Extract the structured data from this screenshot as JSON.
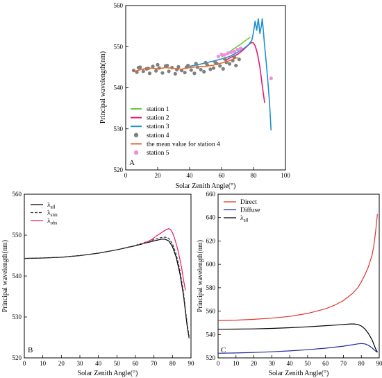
{
  "chart_data": [
    {
      "panel": "A",
      "type": "line",
      "xlabel": "Solar Zenith Angle(°)",
      "ylabel": "Principal wavelength(nm)",
      "xlim": [
        0,
        100
      ],
      "ylim": [
        520,
        560
      ],
      "xticks": [
        "0",
        "20",
        "40",
        "60",
        "80",
        "100"
      ],
      "yticks": [
        "520",
        "530",
        "540",
        "550",
        "560"
      ],
      "legend": "bottom-left",
      "series": [
        {
          "name": "station 1",
          "color": "#66cc33",
          "kind": "line",
          "x": [
            60,
            63,
            66,
            69,
            72,
            75,
            78
          ],
          "y": [
            547.5,
            548.2,
            549.0,
            549.8,
            550.6,
            551.5,
            552.3
          ]
        },
        {
          "name": "station 2",
          "color": "#e8196b",
          "kind": "line",
          "x": [
            62,
            65,
            68,
            70,
            72,
            74,
            76,
            78,
            79,
            80,
            81,
            82,
            83,
            84,
            85,
            86,
            87
          ],
          "y": [
            546.6,
            547.2,
            547.8,
            548.1,
            548.7,
            549.4,
            550.1,
            550.8,
            551.0,
            550.9,
            550.2,
            549.0,
            547.2,
            545.0,
            542.0,
            539.0,
            536.3
          ]
        },
        {
          "name": "station 3",
          "color": "#1f8fd1",
          "kind": "line",
          "x": [
            40,
            45,
            50,
            55,
            60,
            65,
            70,
            74,
            77,
            79,
            80,
            81,
            82,
            83,
            84,
            85,
            85.5,
            86,
            87,
            88,
            89,
            90,
            91
          ],
          "y": [
            545.2,
            545.6,
            546.0,
            546.5,
            547.0,
            547.6,
            548.6,
            549.6,
            550.5,
            551.6,
            553.5,
            556.2,
            554.0,
            556.8,
            553.2,
            555.2,
            556.8,
            554.6,
            550.0,
            546.0,
            541.5,
            536.5,
            529.6
          ]
        },
        {
          "name": "station 4",
          "color": "#808080",
          "kind": "scatter",
          "x": [
            5,
            7,
            9,
            11,
            13,
            15,
            17,
            19,
            21,
            23,
            25,
            27,
            29,
            31,
            33,
            35,
            37,
            39,
            41,
            43,
            45,
            47,
            49,
            51,
            53,
            55,
            57,
            59,
            61,
            63,
            65,
            67,
            69,
            71,
            8,
            14,
            20,
            26,
            32,
            38,
            44,
            50,
            56,
            62,
            68
          ],
          "y": [
            544.2,
            543.8,
            545.0,
            544.0,
            544.6,
            543.5,
            545.2,
            544.1,
            544.8,
            543.6,
            545.3,
            544.0,
            544.9,
            543.4,
            545.1,
            544.2,
            543.7,
            545.4,
            544.3,
            543.5,
            545.0,
            544.4,
            543.9,
            545.6,
            544.5,
            544.8,
            545.9,
            545.3,
            544.6,
            546.2,
            545.8,
            546.6,
            545.4,
            546.9,
            544.9,
            544.7,
            545.6,
            545.4,
            544.4,
            545.0,
            545.9,
            546.1,
            546.2,
            547.0,
            547.4
          ]
        },
        {
          "name": "the mean value for station 4",
          "color": "#e06a2c",
          "kind": "line",
          "x": [
            5,
            10,
            15,
            20,
            25,
            30,
            35,
            40,
            45,
            50,
            55,
            60,
            65,
            70
          ],
          "y": [
            543.9,
            544.5,
            544.8,
            544.6,
            544.9,
            544.7,
            544.5,
            544.9,
            545.1,
            545.2,
            545.5,
            546.0,
            546.6,
            547.4
          ]
        },
        {
          "name": "station 5",
          "color": "#f28ce0",
          "kind": "scatter",
          "x": [
            58,
            60,
            62,
            64,
            66,
            68,
            70,
            72,
            91
          ],
          "y": [
            547.6,
            548.1,
            548.0,
            548.4,
            548.6,
            548.8,
            549.3,
            549.6,
            542.3
          ]
        }
      ]
    },
    {
      "panel": "B",
      "type": "line",
      "xlabel": "Solar Zenith Angle(°)",
      "ylabel": "Principal wavelength(nm)",
      "xlim": [
        0,
        90
      ],
      "ylim": [
        520,
        560
      ],
      "xticks": [
        "0",
        "10",
        "20",
        "30",
        "40",
        "50",
        "60",
        "70",
        "80",
        "90"
      ],
      "yticks": [
        "520",
        "530",
        "540",
        "550",
        "560"
      ],
      "legend": "top-left",
      "series": [
        {
          "name": "λall",
          "label_main": "λ",
          "label_sub": "all",
          "color": "#000000",
          "dash": "",
          "x": [
            0,
            10,
            20,
            30,
            40,
            50,
            60,
            65,
            70,
            74,
            76,
            78,
            80,
            82,
            84,
            86,
            87,
            88,
            89
          ],
          "y": [
            544.3,
            544.4,
            544.6,
            545.0,
            545.6,
            546.4,
            547.4,
            548.0,
            548.6,
            549.0,
            549.0,
            548.6,
            547.2,
            544.6,
            540.6,
            535.2,
            531.2,
            527.5,
            524.8
          ]
        },
        {
          "name": "λsim",
          "label_main": "λ",
          "label_sub": "sim",
          "color": "#333333",
          "dash": "4,2",
          "x": [
            0,
            10,
            20,
            30,
            40,
            50,
            60,
            65,
            70,
            74,
            76,
            78,
            80,
            82,
            84,
            86,
            87,
            88,
            89
          ],
          "y": [
            544.3,
            544.4,
            544.6,
            545.0,
            545.6,
            546.4,
            547.5,
            548.2,
            548.9,
            549.4,
            549.5,
            549.2,
            547.9,
            545.3,
            541.4,
            536.0,
            531.8,
            528.2,
            525.2
          ]
        },
        {
          "name": "λobs",
          "label_main": "λ",
          "label_sub": "obs",
          "color": "#e8196b",
          "dash": "",
          "x": [
            63,
            65,
            67,
            69,
            71,
            73,
            75,
            77,
            78,
            79,
            80,
            81,
            82,
            83,
            84,
            85,
            86,
            87
          ],
          "y": [
            547.9,
            548.0,
            548.5,
            549.0,
            549.7,
            550.3,
            550.9,
            551.4,
            551.6,
            551.3,
            550.6,
            549.4,
            547.9,
            546.2,
            544.1,
            541.8,
            539.0,
            536.5
          ]
        }
      ]
    },
    {
      "panel": "C",
      "type": "line",
      "xlabel": "Solar Zenith Angle(°)",
      "ylabel": "Principal wavelength(nm)",
      "xlim": [
        0,
        90
      ],
      "ylim": [
        520,
        660
      ],
      "xticks": [
        "0",
        "10",
        "20",
        "30",
        "40",
        "50",
        "60",
        "70",
        "80",
        "90"
      ],
      "yticks": [
        "520",
        "540",
        "560",
        "580",
        "600",
        "620",
        "640",
        "660"
      ],
      "legend": "top-left",
      "series": [
        {
          "name": "Direct",
          "label_main": "Direct",
          "label_sub": "",
          "color": "#e0322a",
          "x": [
            0,
            10,
            20,
            30,
            40,
            50,
            60,
            65,
            70,
            75,
            78,
            80,
            82,
            84,
            86,
            87,
            88,
            89
          ],
          "y": [
            552,
            552.3,
            553,
            554,
            555.5,
            558,
            562,
            565,
            569,
            575,
            580,
            585,
            591,
            598,
            608,
            616,
            628,
            643
          ]
        },
        {
          "name": "Diffuse",
          "label_main": "Diffuse",
          "label_sub": "",
          "color": "#1f2a9a",
          "x": [
            0,
            10,
            20,
            30,
            40,
            50,
            60,
            70,
            75,
            78,
            80,
            82,
            84,
            86,
            87,
            88,
            89
          ],
          "y": [
            524,
            524.2,
            524.6,
            525.2,
            526,
            527,
            528.3,
            530,
            531.2,
            532,
            532.3,
            532,
            530.8,
            528.6,
            527.2,
            525.8,
            524.8
          ]
        },
        {
          "name": "λall",
          "label_main": "λ",
          "label_sub": "all",
          "color": "#000000",
          "x": [
            0,
            10,
            20,
            30,
            40,
            50,
            60,
            65,
            70,
            74,
            76,
            78,
            80,
            82,
            84,
            86,
            87,
            88,
            89
          ],
          "y": [
            544.5,
            544.6,
            544.8,
            545.2,
            545.8,
            546.6,
            547.5,
            548,
            548.6,
            549,
            549,
            548.6,
            547.3,
            544.8,
            540.8,
            535.5,
            531.5,
            527.8,
            525
          ]
        }
      ]
    }
  ],
  "panel_labels": {
    "a": "A",
    "b": "B",
    "c": "C"
  },
  "legend_marker": {
    "scatter": "●"
  }
}
